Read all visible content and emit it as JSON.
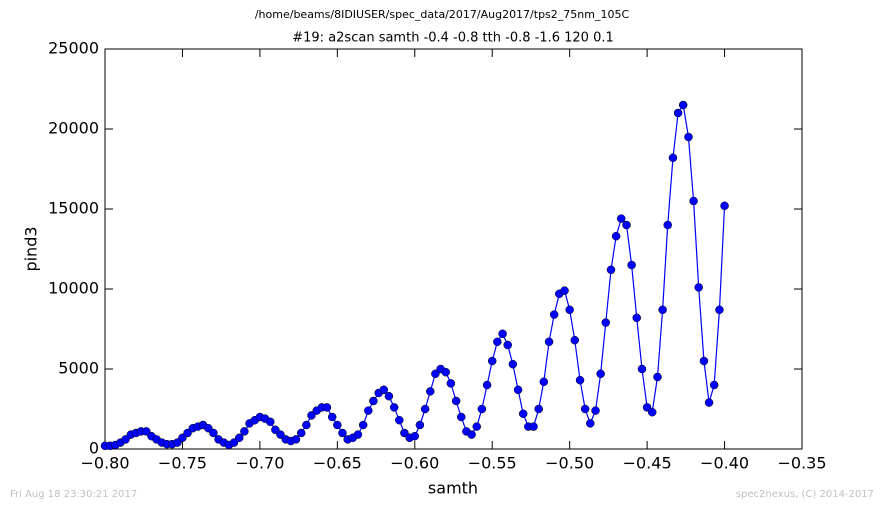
{
  "chart_data": {
    "type": "line",
    "header": "/home/beams/8IDIUSER/spec_data/2017/Aug2017/tps2_75nm_105C",
    "title": "#19: a2scan  samth -0.4 -0.8  tth -0.8 -1.6  120 0.1",
    "x_label": "samth",
    "y_label": "pind3",
    "footer_left": "Fri Aug 18 23:30:21 2017",
    "footer_right": "spec2nexus, (C) 2014-2017",
    "color": "#0000ff",
    "marker": "circle",
    "x": [
      -0.8,
      -0.7967,
      -0.7933,
      -0.79,
      -0.7867,
      -0.7833,
      -0.78,
      -0.7767,
      -0.7733,
      -0.77,
      -0.7667,
      -0.7633,
      -0.76,
      -0.7567,
      -0.7533,
      -0.75,
      -0.7467,
      -0.7433,
      -0.74,
      -0.7367,
      -0.7333,
      -0.73,
      -0.7267,
      -0.7233,
      -0.72,
      -0.7167,
      -0.7133,
      -0.71,
      -0.7067,
      -0.7033,
      -0.7,
      -0.6967,
      -0.6933,
      -0.69,
      -0.6867,
      -0.6833,
      -0.68,
      -0.6767,
      -0.6733,
      -0.67,
      -0.6667,
      -0.6633,
      -0.66,
      -0.6567,
      -0.6533,
      -0.65,
      -0.6467,
      -0.6433,
      -0.64,
      -0.6367,
      -0.6333,
      -0.63,
      -0.6267,
      -0.6233,
      -0.62,
      -0.6167,
      -0.6133,
      -0.61,
      -0.6067,
      -0.6033,
      -0.6,
      -0.5967,
      -0.5933,
      -0.59,
      -0.5867,
      -0.5833,
      -0.58,
      -0.5767,
      -0.5733,
      -0.57,
      -0.5667,
      -0.5633,
      -0.56,
      -0.5567,
      -0.5533,
      -0.55,
      -0.5467,
      -0.5433,
      -0.54,
      -0.5367,
      -0.5333,
      -0.53,
      -0.5267,
      -0.5233,
      -0.52,
      -0.5167,
      -0.5133,
      -0.51,
      -0.5067,
      -0.5033,
      -0.5,
      -0.4967,
      -0.4933,
      -0.49,
      -0.4867,
      -0.4833,
      -0.48,
      -0.4767,
      -0.4733,
      -0.47,
      -0.4667,
      -0.4633,
      -0.46,
      -0.4567,
      -0.4533,
      -0.45,
      -0.4467,
      -0.4433,
      -0.44,
      -0.4367,
      -0.4333,
      -0.43,
      -0.4267,
      -0.4233,
      -0.42,
      -0.4167,
      -0.4133,
      -0.41,
      -0.4067,
      -0.4033,
      -0.4
    ],
    "values": [
      200,
      200,
      250,
      400,
      600,
      900,
      1000,
      1100,
      1100,
      800,
      600,
      400,
      300,
      300,
      400,
      700,
      1000,
      1300,
      1400,
      1500,
      1300,
      1000,
      600,
      400,
      250,
      400,
      700,
      1100,
      1600,
      1800,
      2000,
      1900,
      1700,
      1200,
      900,
      600,
      500,
      600,
      1000,
      1500,
      2100,
      2400,
      2600,
      2600,
      2000,
      1500,
      1000,
      600,
      700,
      900,
      1500,
      2400,
      3000,
      3500,
      3700,
      3300,
      2600,
      1800,
      1000,
      700,
      800,
      1500,
      2500,
      3600,
      4700,
      5000,
      4800,
      4100,
      3000,
      2000,
      1100,
      900,
      1400,
      2500,
      4000,
      5500,
      6700,
      7200,
      6500,
      5300,
      3700,
      2200,
      1400,
      1400,
      2500,
      4200,
      6700,
      8400,
      9700,
      9900,
      8700,
      6800,
      4300,
      2500,
      1600,
      2400,
      4700,
      7900,
      11200,
      13300,
      14400,
      14000,
      11500,
      8200,
      5000,
      2600,
      2300,
      4500,
      8700,
      14000,
      18200,
      21000,
      21500,
      19500,
      15500,
      10100,
      5500,
      2900,
      4000,
      8700,
      15200
    ],
    "xlim": [
      -0.8,
      -0.35
    ],
    "xticks": [
      {
        "value": -0.8,
        "label": "−0.80"
      },
      {
        "value": -0.75,
        "label": "−0.75"
      },
      {
        "value": -0.7,
        "label": "−0.70"
      },
      {
        "value": -0.65,
        "label": "−0.65"
      },
      {
        "value": -0.6,
        "label": "−0.60"
      },
      {
        "value": -0.55,
        "label": "−0.55"
      },
      {
        "value": -0.5,
        "label": "−0.50"
      },
      {
        "value": -0.45,
        "label": "−0.45"
      },
      {
        "value": -0.4,
        "label": "−0.40"
      },
      {
        "value": -0.35,
        "label": "−0.35"
      }
    ],
    "ylim": [
      0,
      25000
    ],
    "yticks": [
      0,
      5000,
      10000,
      15000,
      20000,
      25000
    ],
    "grid": false
  }
}
